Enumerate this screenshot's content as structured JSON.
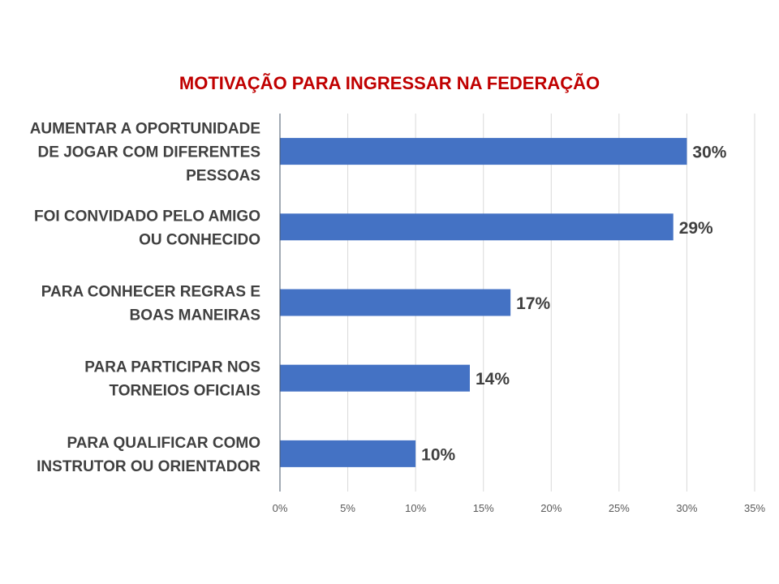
{
  "colors": {
    "title": "#C00000",
    "bar": "#4472C4",
    "gridline": "#D9D9D9",
    "axis": "#44546A",
    "text": "#404040"
  },
  "chart_data": {
    "type": "bar",
    "orientation": "horizontal",
    "title": "MOTIVAÇÃO PARA INGRESSAR NA FEDERAÇÃO",
    "categories": [
      [
        "AUMENTAR A OPORTUNIDADE",
        "DE JOGAR COM DIFERENTES",
        "PESSOAS"
      ],
      [
        "FOI CONVIDADO PELO AMIGO",
        "OU CONHECIDO"
      ],
      [
        "PARA CONHECER REGRAS E",
        "BOAS MANEIRAS"
      ],
      [
        "PARA PARTICIPAR NOS",
        "TORNEIOS OFICIAIS"
      ],
      [
        "PARA QUALIFICAR COMO",
        "INSTRUTOR OU ORIENTADOR"
      ]
    ],
    "values": [
      30,
      29,
      17,
      14,
      10
    ],
    "data_labels": [
      "30%",
      "29%",
      "17%",
      "14%",
      "10%"
    ],
    "xlim": [
      0,
      35
    ],
    "xticks": [
      0,
      5,
      10,
      15,
      20,
      25,
      30,
      35
    ],
    "xtick_labels": [
      "0%",
      "5%",
      "10%",
      "15%",
      "20%",
      "25%",
      "30%",
      "35%"
    ],
    "grid": true,
    "legend": "none",
    "xlabel": "",
    "ylabel": ""
  }
}
